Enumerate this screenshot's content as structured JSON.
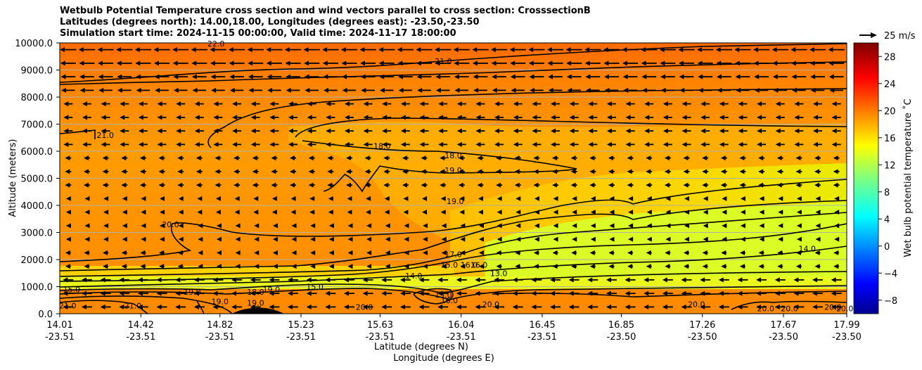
{
  "title_lines": [
    "Wetbulb Potential Temperature cross section and wind vectors parallel to cross section: CrosssectionB",
    "Latitudes (degrees north): 14.00,18.00, Longitudes (degrees east): -23.50,-23.50",
    "Simulation start time: 2024-11-15 00:00:00, Valid time: 2024-11-17 18:00:00"
  ],
  "chart_data": {
    "type": "heatmap",
    "ylabel": "Altitude (meters)",
    "xlabel_lat": "Latitude (degrees N)",
    "xlabel_lon": "Longitude (degrees E)",
    "ylim": [
      0,
      10000
    ],
    "yticks": [
      "0.0",
      "1000.0",
      "2000.0",
      "3000.0",
      "4000.0",
      "5000.0",
      "6000.0",
      "7000.0",
      "8000.0",
      "9000.0",
      "10000.0"
    ],
    "ytick_values": [
      0,
      1000,
      2000,
      3000,
      4000,
      5000,
      6000,
      7000,
      8000,
      9000,
      10000
    ],
    "xlim": [
      14.01,
      17.99
    ],
    "x_ticks": [
      {
        "lat": "14.01",
        "lon": "-23.51",
        "value": 14.01
      },
      {
        "lat": "14.42",
        "lon": "-23.51",
        "value": 14.42
      },
      {
        "lat": "14.82",
        "lon": "-23.51",
        "value": 14.82
      },
      {
        "lat": "15.23",
        "lon": "-23.51",
        "value": 15.23
      },
      {
        "lat": "15.63",
        "lon": "-23.51",
        "value": 15.63
      },
      {
        "lat": "16.04",
        "lon": "-23.51",
        "value": 16.04
      },
      {
        "lat": "16.45",
        "lon": "-23.51",
        "value": 16.45
      },
      {
        "lat": "16.85",
        "lon": "-23.50",
        "value": 16.85
      },
      {
        "lat": "17.26",
        "lon": "-23.50",
        "value": 17.26
      },
      {
        "lat": "17.67",
        "lon": "-23.50",
        "value": 17.67
      },
      {
        "lat": "17.99",
        "lon": "-23.50",
        "value": 17.99
      }
    ],
    "colorbar": {
      "label": "Wet bulb potential temperature ˚C",
      "ticks": [
        "−8",
        "−4",
        "0",
        "4",
        "8",
        "12",
        "16",
        "20",
        "24",
        "28"
      ],
      "tick_values": [
        -8,
        -4,
        0,
        4,
        8,
        12,
        16,
        20,
        24,
        28
      ],
      "range": [
        -10,
        30
      ],
      "colormap": "jet"
    },
    "wind_key": {
      "label": "25 m/s",
      "speed": 25
    },
    "contour_labels": [
      {
        "text": "22.0",
        "lat": 14.8,
        "alt": 9980
      },
      {
        "text": "21.0",
        "lat": 15.95,
        "alt": 9320
      },
      {
        "text": "21.0",
        "lat": 14.24,
        "alt": 6600
      },
      {
        "text": "18.0",
        "lat": 15.64,
        "alt": 6200
      },
      {
        "text": "18.0",
        "lat": 16.0,
        "alt": 5850
      },
      {
        "text": "19.0",
        "lat": 16.0,
        "alt": 5300
      },
      {
        "text": "19.0",
        "lat": 16.01,
        "alt": 4150
      },
      {
        "text": "20.0",
        "lat": 14.57,
        "alt": 3300
      },
      {
        "text": "17.0",
        "lat": 16.0,
        "alt": 2200
      },
      {
        "text": "16.0",
        "lat": 16.08,
        "alt": 1800
      },
      {
        "text": "15.0",
        "lat": 15.98,
        "alt": 1800
      },
      {
        "text": "14.0",
        "lat": 17.79,
        "alt": 2400
      },
      {
        "text": "14.0",
        "lat": 15.8,
        "alt": 1400
      },
      {
        "text": "13.0",
        "lat": 16.23,
        "alt": 1500
      },
      {
        "text": "16.0",
        "lat": 16.13,
        "alt": 1800
      },
      {
        "text": "15.0",
        "lat": 14.07,
        "alt": 900
      },
      {
        "text": "19.0",
        "lat": 14.68,
        "alt": 800
      },
      {
        "text": "19.0",
        "lat": 14.82,
        "alt": 450
      },
      {
        "text": "18.0",
        "lat": 15.0,
        "alt": 800
      },
      {
        "text": "19.0",
        "lat": 15.08,
        "alt": 900
      },
      {
        "text": "15.0",
        "lat": 15.3,
        "alt": 1000
      },
      {
        "text": "15.0",
        "lat": 15.95,
        "alt": 700
      },
      {
        "text": "16.0",
        "lat": 15.98,
        "alt": 500
      },
      {
        "text": "19.0",
        "lat": 15.0,
        "alt": 400
      },
      {
        "text": "21.0",
        "lat": 14.05,
        "alt": 300
      },
      {
        "text": "21.0",
        "lat": 14.38,
        "alt": 300
      },
      {
        "text": "20.0",
        "lat": 15.55,
        "alt": 250
      },
      {
        "text": "20.0",
        "lat": 16.19,
        "alt": 350
      },
      {
        "text": "20.0",
        "lat": 17.23,
        "alt": 350
      },
      {
        "text": "20.0",
        "lat": 17.58,
        "alt": 200
      },
      {
        "text": "20.0",
        "lat": 17.7,
        "alt": 200
      },
      {
        "text": "20.0",
        "lat": 17.92,
        "alt": 250
      },
      {
        "text": "20.0",
        "lat": 17.98,
        "alt": 200
      }
    ],
    "grid": "horizontal-only",
    "background_field": "mostly 19-22 C (orange); 15-17 C (yellow-green) below 3000 m east of 16.0 N; narrow 15 C band near 1000 m",
    "wind_vectors": "westward (pointing left) at most levels; strongest 8000-10000 m and near the surface"
  },
  "colors": {
    "warm": "#ff6a00",
    "orange": "#ff9400",
    "yellow": "#ffd000",
    "lime": "#c8ff2e",
    "contour": "#000000"
  }
}
